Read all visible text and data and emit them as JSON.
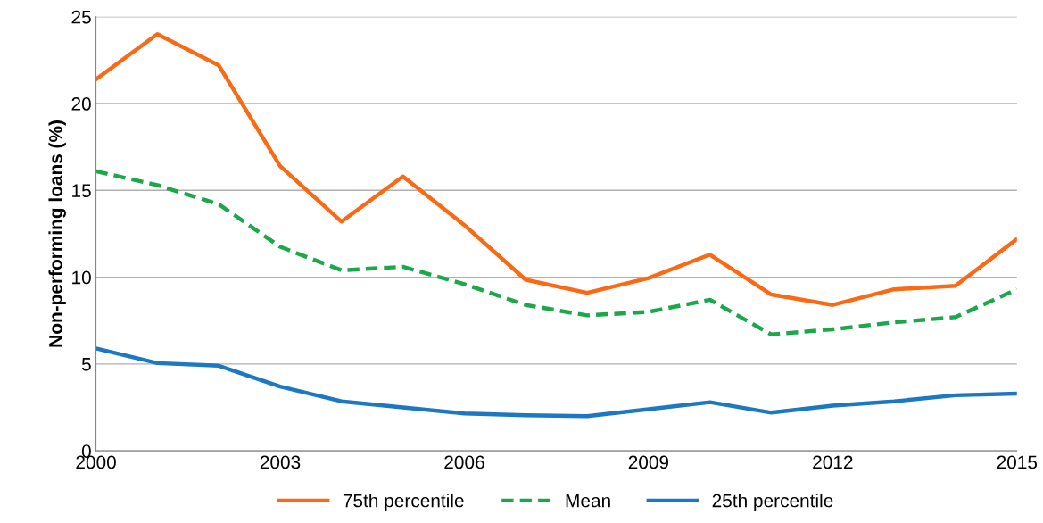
{
  "chart_data": {
    "type": "line",
    "ylabel": "Non-performing loans (%)",
    "x": [
      2000,
      2001,
      2002,
      2003,
      2004,
      2005,
      2006,
      2007,
      2008,
      2009,
      2010,
      2011,
      2012,
      2013,
      2014,
      2015
    ],
    "series": [
      {
        "name": "75th percentile",
        "color": "#fa6a14",
        "line_style": "solid",
        "values": [
          21.4,
          24.0,
          22.2,
          16.4,
          13.2,
          15.8,
          13.0,
          9.85,
          9.1,
          9.95,
          11.3,
          9.0,
          8.4,
          9.3,
          9.5,
          12.2
        ]
      },
      {
        "name": "Mean",
        "color": "#1aa84a",
        "line_style": "dashed",
        "values": [
          16.1,
          15.3,
          14.2,
          11.75,
          10.4,
          10.6,
          9.6,
          8.4,
          7.8,
          8.0,
          8.7,
          6.7,
          7.0,
          7.4,
          7.7,
          9.3
        ]
      },
      {
        "name": "25th percentile",
        "color": "#1c78c0",
        "line_style": "solid",
        "values": [
          5.9,
          5.05,
          4.9,
          3.7,
          2.85,
          2.5,
          2.15,
          2.05,
          2.0,
          2.4,
          2.8,
          2.2,
          2.6,
          2.85,
          3.2,
          3.3
        ]
      }
    ],
    "xlim": [
      2000,
      2015
    ],
    "xticks": [
      2000,
      2003,
      2006,
      2009,
      2012,
      2015
    ],
    "ylim": [
      0,
      25
    ],
    "yticks": [
      0,
      5,
      10,
      15,
      20,
      25
    ],
    "grid": "y",
    "legend": "bottom",
    "marker": "none"
  }
}
